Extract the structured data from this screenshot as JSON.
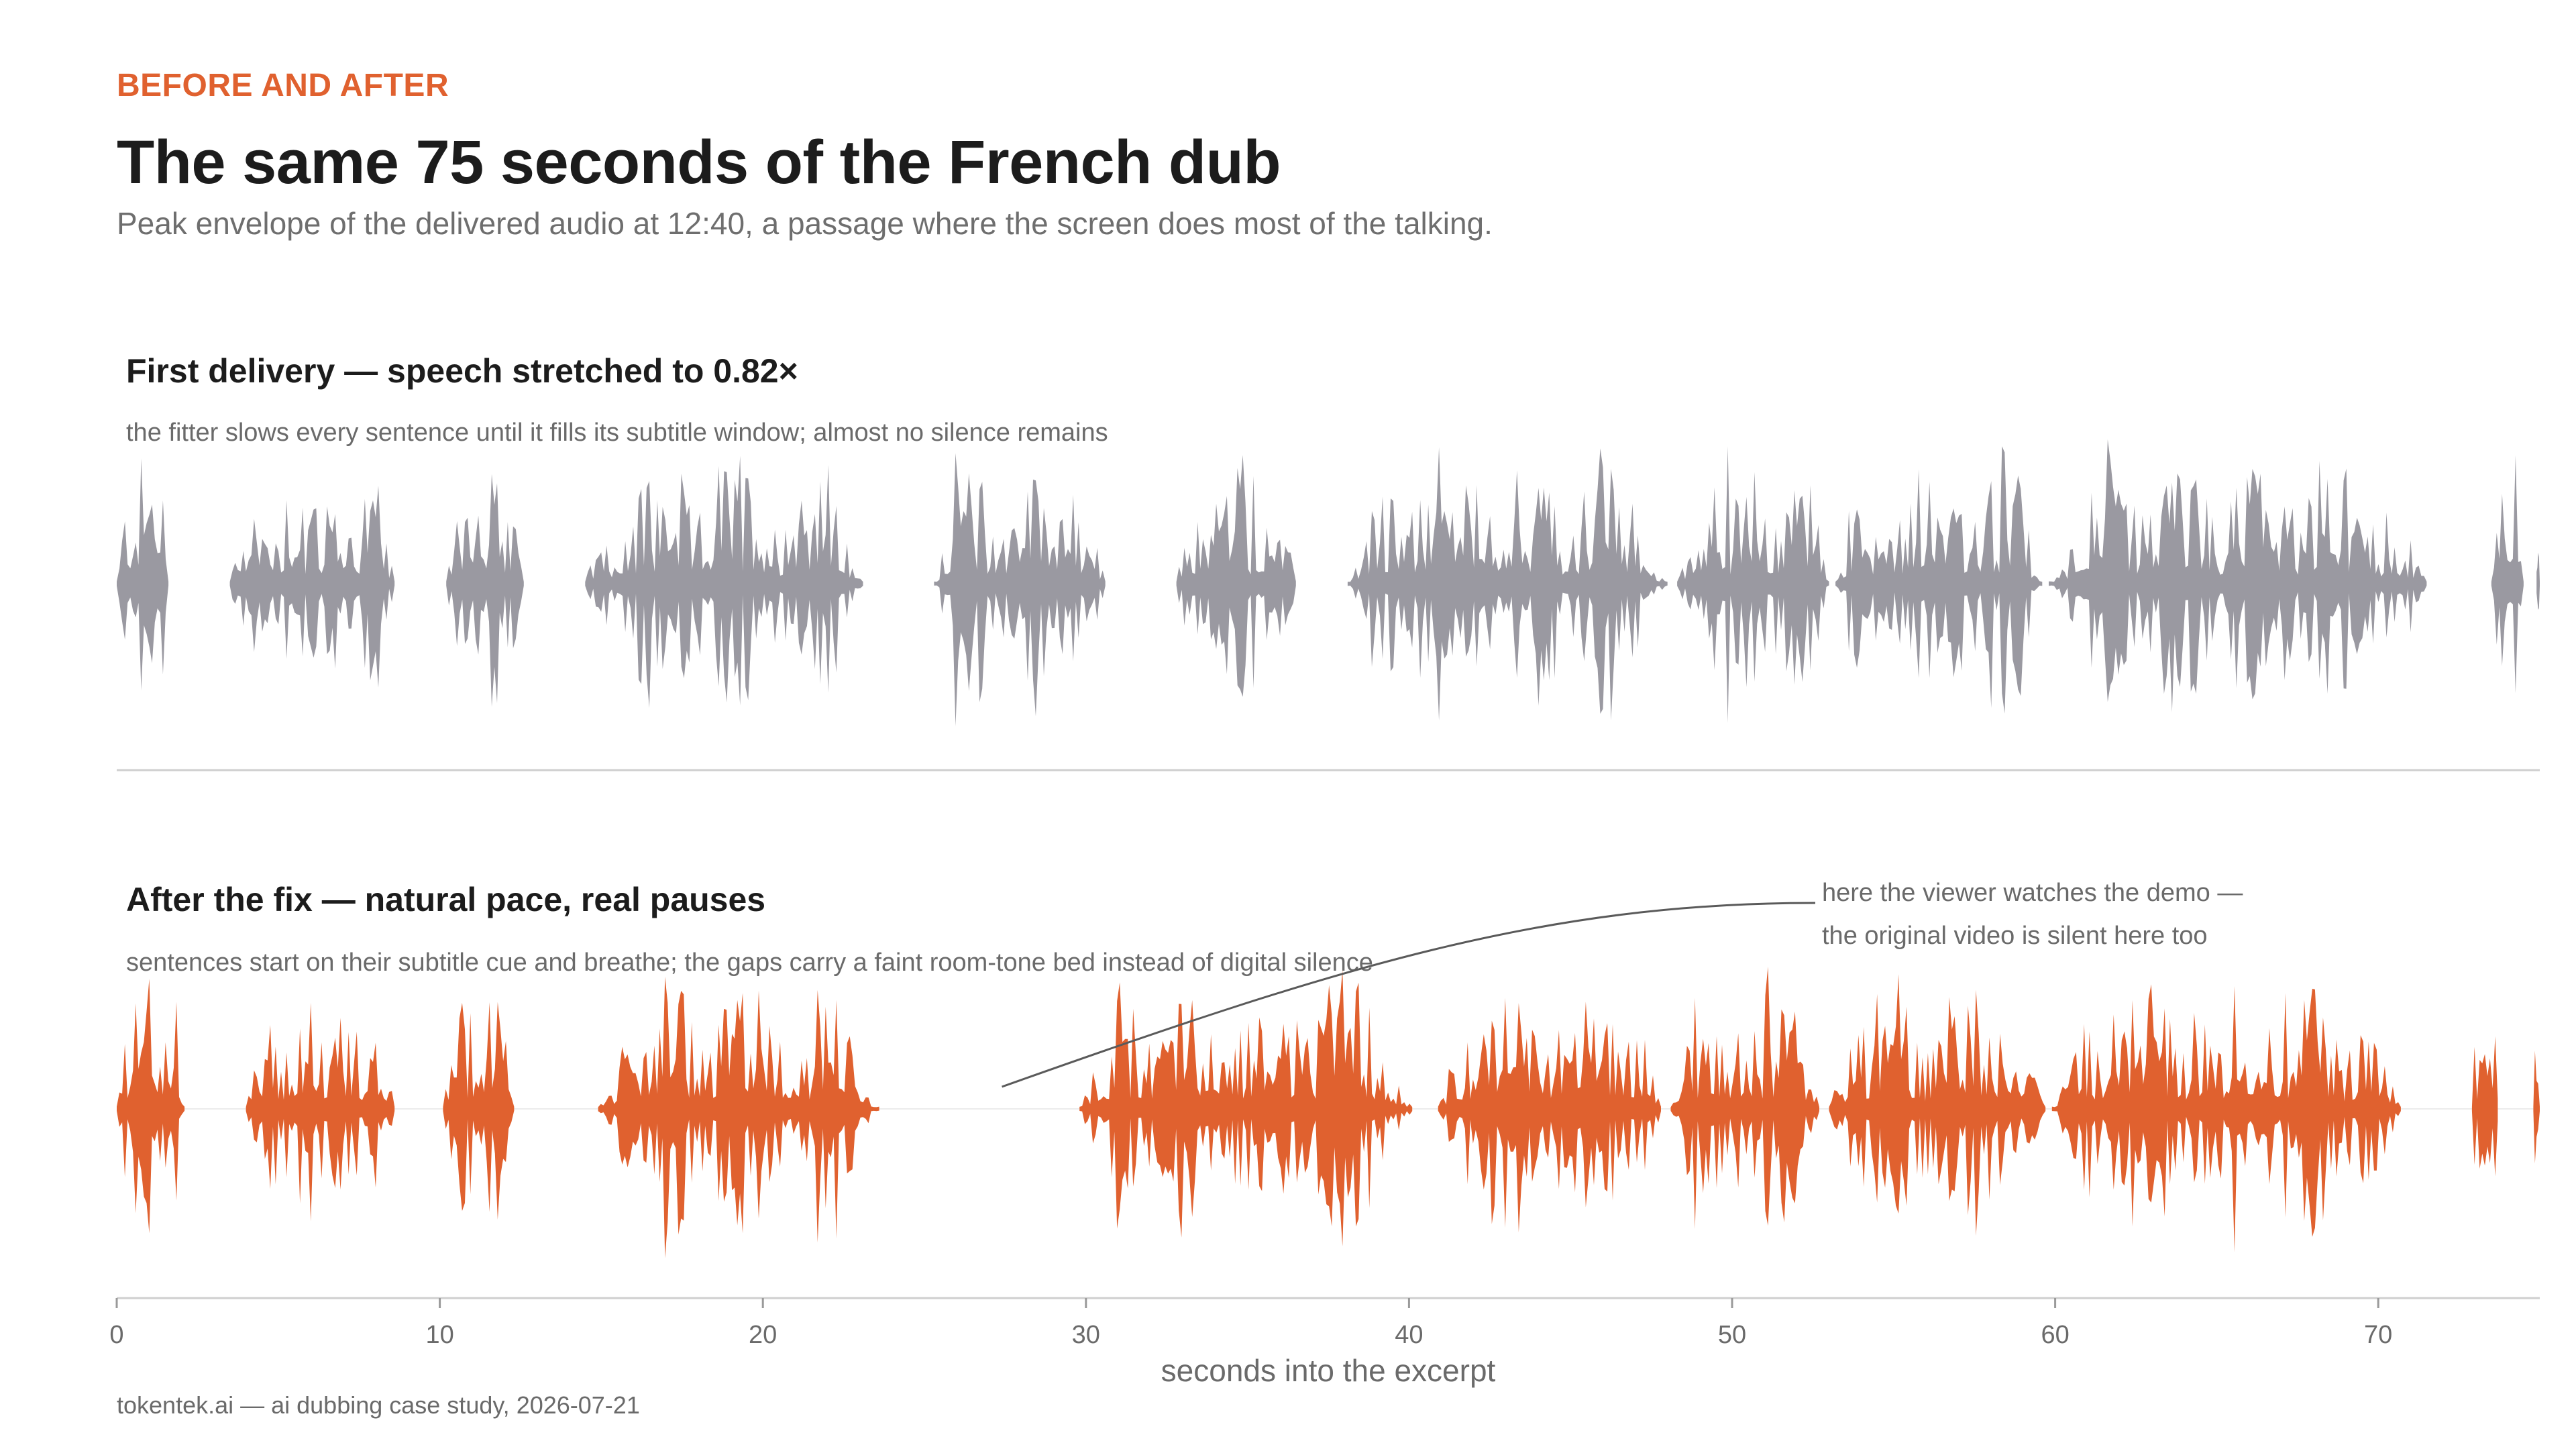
{
  "header": {
    "kicker": "BEFORE AND AFTER",
    "title": "The same 75 seconds of the French dub",
    "subtitle": "Peak envelope of the delivered audio at 12:40, a passage where the screen does most of the talking."
  },
  "panels": [
    {
      "title": "First delivery — speech stretched to 0.82×",
      "subtitle": "the fitter slows every sentence until it fills its subtitle window; almost no silence remains"
    },
    {
      "title": "After the fix — natural pace, real pauses",
      "subtitle": "sentences start on their subtitle cue and breathe; the gaps carry a faint room-tone bed instead of digital silence"
    }
  ],
  "annotation": {
    "line1": "here the viewer watches the demo —",
    "line2": "the original video is silent here too",
    "points_to_seconds": 27.4
  },
  "footer": "tokentek.ai — ai dubbing case study, 2026-07-21",
  "colors": {
    "before": "#9a99a1",
    "after": "#e0612f",
    "accent": "#e0612f",
    "axis": "#cfcfcf"
  },
  "chart_data": {
    "type": "area",
    "xlabel": "seconds into the excerpt",
    "xlim": [
      0,
      75
    ],
    "xticks": [
      0,
      10,
      20,
      30,
      40,
      50,
      60,
      70
    ],
    "ylabel": "",
    "series": [
      {
        "name": "First delivery",
        "color": "#9a99a1",
        "speech_segments": [
          [
            0,
            1.6
          ],
          [
            3.5,
            8.6
          ],
          [
            10.2,
            12.6
          ],
          [
            14.5,
            23.1
          ],
          [
            25.3,
            30.6
          ],
          [
            32.8,
            36.5
          ],
          [
            38.1,
            48.0
          ],
          [
            48.3,
            53.0
          ],
          [
            53.2,
            59.6
          ],
          [
            59.8,
            71.5
          ],
          [
            73.5,
            74.5
          ],
          [
            74.9,
            75.0
          ]
        ]
      },
      {
        "name": "After the fix",
        "color": "#e0612f",
        "speech_segments": [
          [
            0,
            2.1
          ],
          [
            4.0,
            8.6
          ],
          [
            10.1,
            12.3
          ],
          [
            14.9,
            23.6
          ],
          [
            29.8,
            40.1
          ],
          [
            40.9,
            47.8
          ],
          [
            48.1,
            52.7
          ],
          [
            53.0,
            59.7
          ],
          [
            59.9,
            70.7
          ],
          [
            72.9,
            73.7
          ],
          [
            74.8,
            75.0
          ]
        ]
      }
    ]
  }
}
